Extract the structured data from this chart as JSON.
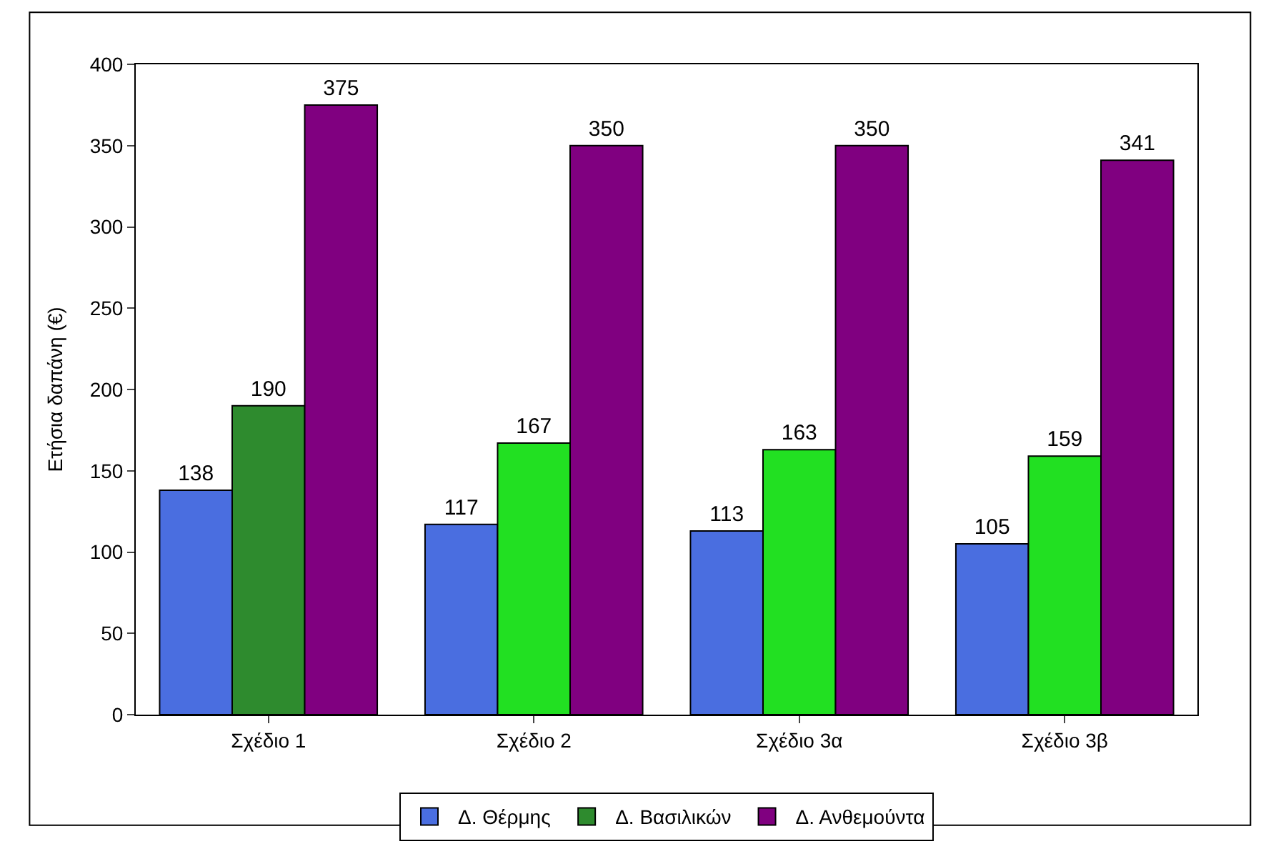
{
  "chart_data": {
    "type": "bar",
    "ylabel": "Ετήσια δαπάνη (€)",
    "categories": [
      "Σχέδιο 1",
      "Σχέδιο 2",
      "Σχέδιο 3α",
      "Σχέδιο 3β"
    ],
    "series": [
      {
        "name": "Δ. Θέρμης",
        "color": "#4a6ee0",
        "values": [
          138,
          117,
          113,
          105
        ]
      },
      {
        "name": "Δ. Βασιλικών",
        "color": "#2e8b2e",
        "colors": [
          "#2e8b2e",
          "#22e022",
          "#22e022",
          "#22e022"
        ],
        "values": [
          190,
          167,
          163,
          159
        ]
      },
      {
        "name": "Δ. Ανθεμούντα",
        "color": "#800080",
        "values": [
          375,
          350,
          350,
          341
        ]
      }
    ],
    "ylim": [
      0,
      400
    ],
    "yticks": [
      0,
      50,
      100,
      150,
      200,
      250,
      300,
      350,
      400
    ],
    "grid": false,
    "legend": "bottom",
    "data_labels": true
  }
}
